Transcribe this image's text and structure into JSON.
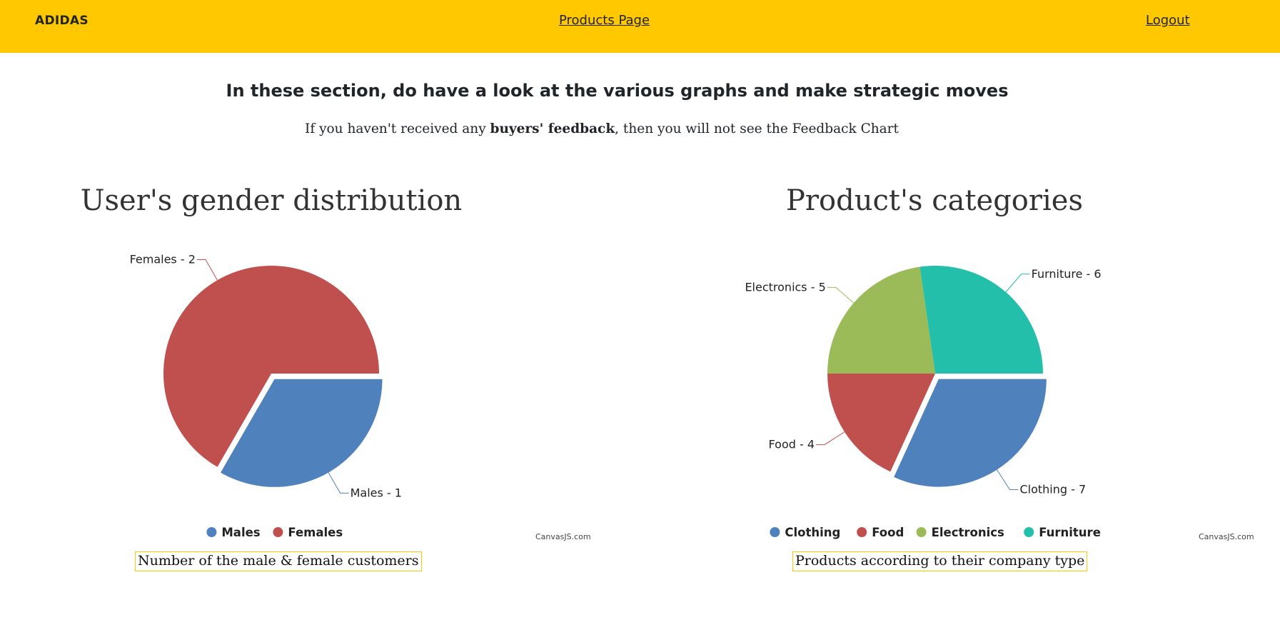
{
  "navbar": {
    "brand": "ADIDAS",
    "products_link": "Products Page",
    "logout_link": "Logout"
  },
  "intro": {
    "headline": "In these section, do have a look at the various graphs and make strategic moves",
    "sub_before": "If you haven't received any ",
    "sub_bold": "buyers' feedback",
    "sub_after": ", then you will not see the Feedback Chart"
  },
  "colors": {
    "navbar": "#ffc800",
    "blue": "#4f81bc",
    "red": "#c0504e",
    "green": "#9bbb58",
    "teal": "#23bfaa"
  },
  "credit": "CanvasJS.com",
  "chart_data": [
    {
      "type": "pie",
      "title": "User's gender distribution",
      "caption": "Number of the male & female customers",
      "legend_position": "bottom-center",
      "slices": [
        {
          "name": "Males",
          "value": 1,
          "label": "Males - 1",
          "color": "#4f81bc",
          "exploded": true
        },
        {
          "name": "Females",
          "value": 2,
          "label": "Females - 2",
          "color": "#c0504e",
          "exploded": false
        }
      ]
    },
    {
      "type": "pie",
      "title": "Product's categories",
      "caption": "Products according to their company type",
      "legend_position": "bottom-center",
      "slices": [
        {
          "name": "Clothing",
          "value": 7,
          "label": "Clothing - 7",
          "color": "#4f81bc",
          "exploded": true
        },
        {
          "name": "Food",
          "value": 4,
          "label": "Food - 4",
          "color": "#c0504e",
          "exploded": false
        },
        {
          "name": "Electronics",
          "value": 5,
          "label": "Electronics - 5",
          "color": "#9bbb58",
          "exploded": false
        },
        {
          "name": "Furniture",
          "value": 6,
          "label": "Furniture - 6",
          "color": "#23bfaa",
          "exploded": false
        }
      ]
    }
  ]
}
